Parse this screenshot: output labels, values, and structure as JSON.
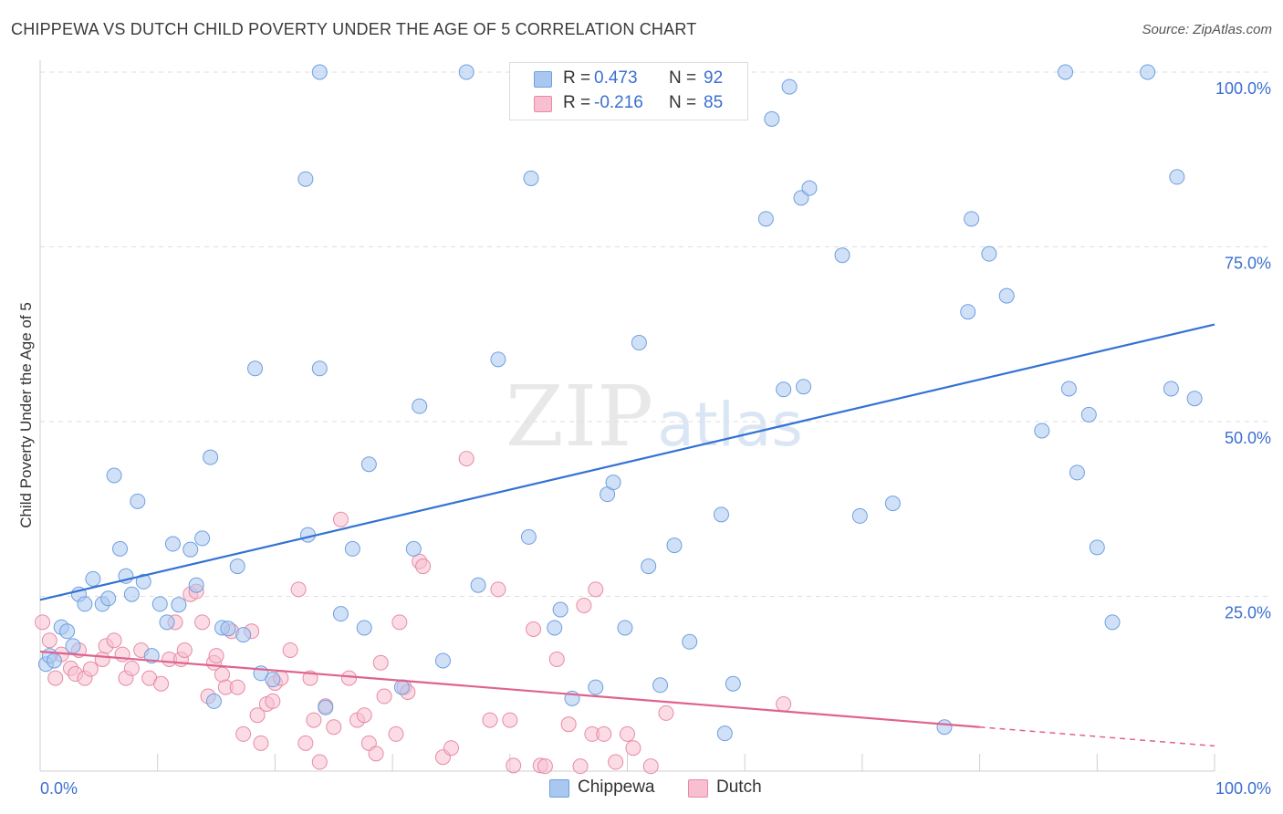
{
  "header": {
    "title": "CHIPPEWA VS DUTCH CHILD POVERTY UNDER THE AGE OF 5 CORRELATION CHART",
    "source": "Source: ZipAtlas.com"
  },
  "watermark": {
    "zip": "ZIP",
    "atlas": "atlas"
  },
  "legend": {
    "rows": [
      {
        "r_label": "R =",
        "r_value": "0.473",
        "n_label": "N =",
        "n_value": "92"
      },
      {
        "r_label": "R =",
        "r_value": "-0.216",
        "n_label": "N =",
        "n_value": "85"
      }
    ],
    "bottom": [
      "Chippewa",
      "Dutch"
    ]
  },
  "colors": {
    "chippewa_fill": "#a9c8f0",
    "chippewa_stroke": "#6e9fe0",
    "chippewa_line": "#3372d4",
    "dutch_fill": "#f7bfd0",
    "dutch_stroke": "#e88aa8",
    "dutch_line": "#e0628d",
    "axis_text": "#3b6fd0",
    "grid": "#dedede"
  },
  "chart_data": {
    "type": "scatter",
    "title": "CHIPPEWA VS DUTCH CHILD POVERTY UNDER THE AGE OF 5 CORRELATION CHART",
    "xlabel": "",
    "ylabel": "Child Poverty Under the Age of 5",
    "xlim": [
      0,
      100
    ],
    "ylim": [
      0,
      100
    ],
    "x_tick_labels": [
      "0.0%",
      "100.0%"
    ],
    "y_tick_labels": [
      "25.0%",
      "50.0%",
      "75.0%",
      "100.0%"
    ],
    "y_ticks": [
      25,
      50,
      75,
      100
    ],
    "grid": true,
    "legend_position": "top-center",
    "series": [
      {
        "name": "Chippewa",
        "r": 0.473,
        "n": 92,
        "trend": {
          "x": [
            0,
            100
          ],
          "y": [
            24.5,
            63.9
          ],
          "dashed_from": null
        },
        "points": [
          [
            0.5,
            15.3
          ],
          [
            0.8,
            16.5
          ],
          [
            1.2,
            15.8
          ],
          [
            1.8,
            20.6
          ],
          [
            2.3,
            20.0
          ],
          [
            2.8,
            17.9
          ],
          [
            3.3,
            25.3
          ],
          [
            3.8,
            23.9
          ],
          [
            4.5,
            27.5
          ],
          [
            5.3,
            23.9
          ],
          [
            5.8,
            24.7
          ],
          [
            6.3,
            42.3
          ],
          [
            6.8,
            31.8
          ],
          [
            7.3,
            27.9
          ],
          [
            7.8,
            25.3
          ],
          [
            8.3,
            38.6
          ],
          [
            8.8,
            27.1
          ],
          [
            9.5,
            16.5
          ],
          [
            10.2,
            23.9
          ],
          [
            10.8,
            21.3
          ],
          [
            11.3,
            32.5
          ],
          [
            11.8,
            23.8
          ],
          [
            12.8,
            31.7
          ],
          [
            13.3,
            26.6
          ],
          [
            13.8,
            33.3
          ],
          [
            14.5,
            44.9
          ],
          [
            14.8,
            10.0
          ],
          [
            15.5,
            20.5
          ],
          [
            16.0,
            20.4
          ],
          [
            16.8,
            29.3
          ],
          [
            17.3,
            19.5
          ],
          [
            18.3,
            57.6
          ],
          [
            18.8,
            14.0
          ],
          [
            19.8,
            13.1
          ],
          [
            22.6,
            84.7
          ],
          [
            22.8,
            33.8
          ],
          [
            23.8,
            100
          ],
          [
            23.8,
            57.6
          ],
          [
            24.3,
            9.1
          ],
          [
            25.6,
            22.5
          ],
          [
            26.6,
            31.8
          ],
          [
            27.6,
            20.5
          ],
          [
            28.0,
            43.9
          ],
          [
            30.8,
            12.0
          ],
          [
            31.8,
            31.8
          ],
          [
            32.3,
            52.2
          ],
          [
            34.3,
            15.8
          ],
          [
            36.3,
            100
          ],
          [
            37.3,
            26.6
          ],
          [
            39.0,
            58.9
          ],
          [
            41.6,
            33.5
          ],
          [
            41.8,
            84.8
          ],
          [
            43.8,
            20.5
          ],
          [
            44.3,
            23.1
          ],
          [
            45.3,
            10.4
          ],
          [
            47.3,
            12.0
          ],
          [
            48.3,
            39.6
          ],
          [
            48.8,
            41.3
          ],
          [
            49.8,
            20.5
          ],
          [
            51.0,
            61.3
          ],
          [
            51.8,
            29.3
          ],
          [
            52.8,
            12.3
          ],
          [
            54.0,
            32.3
          ],
          [
            55.3,
            18.5
          ],
          [
            58.0,
            36.7
          ],
          [
            58.3,
            5.4
          ],
          [
            59.0,
            12.5
          ],
          [
            61.8,
            79.0
          ],
          [
            62.3,
            93.3
          ],
          [
            63.3,
            54.6
          ],
          [
            63.8,
            97.9
          ],
          [
            64.8,
            82.0
          ],
          [
            65.0,
            55.0
          ],
          [
            65.5,
            83.4
          ],
          [
            68.3,
            73.8
          ],
          [
            69.8,
            36.5
          ],
          [
            72.6,
            38.3
          ],
          [
            77.0,
            6.3
          ],
          [
            79.0,
            65.7
          ],
          [
            79.3,
            79.0
          ],
          [
            80.8,
            74.0
          ],
          [
            82.3,
            68.0
          ],
          [
            85.3,
            48.7
          ],
          [
            87.3,
            100
          ],
          [
            87.6,
            54.7
          ],
          [
            88.3,
            42.7
          ],
          [
            89.3,
            51.0
          ],
          [
            90.0,
            32.0
          ],
          [
            91.3,
            21.3
          ],
          [
            94.3,
            100
          ],
          [
            96.3,
            54.7
          ],
          [
            96.8,
            85.0
          ],
          [
            98.3,
            53.3
          ]
        ]
      },
      {
        "name": "Dutch",
        "r": -0.216,
        "n": 85,
        "trend": {
          "x": [
            0,
            100
          ],
          "y": [
            17.1,
            3.6
          ],
          "dashed_from": 80
        },
        "points": [
          [
            0.2,
            21.3
          ],
          [
            0.8,
            18.7
          ],
          [
            1.3,
            13.3
          ],
          [
            1.8,
            16.7
          ],
          [
            2.6,
            14.7
          ],
          [
            3.0,
            13.9
          ],
          [
            3.3,
            17.3
          ],
          [
            3.8,
            13.3
          ],
          [
            4.3,
            14.6
          ],
          [
            5.3,
            16.0
          ],
          [
            5.6,
            17.9
          ],
          [
            6.3,
            18.7
          ],
          [
            7.0,
            16.7
          ],
          [
            7.3,
            13.3
          ],
          [
            7.8,
            14.7
          ],
          [
            8.6,
            17.3
          ],
          [
            9.3,
            13.3
          ],
          [
            10.3,
            12.5
          ],
          [
            11.0,
            16.0
          ],
          [
            11.5,
            21.3
          ],
          [
            12.0,
            16.0
          ],
          [
            12.3,
            17.3
          ],
          [
            12.8,
            25.3
          ],
          [
            13.3,
            25.7
          ],
          [
            13.8,
            21.3
          ],
          [
            14.3,
            10.7
          ],
          [
            14.8,
            15.5
          ],
          [
            15.0,
            16.5
          ],
          [
            15.5,
            13.8
          ],
          [
            15.8,
            12.0
          ],
          [
            16.3,
            20.0
          ],
          [
            16.8,
            12.0
          ],
          [
            17.3,
            5.3
          ],
          [
            18.0,
            20.0
          ],
          [
            18.5,
            8.0
          ],
          [
            18.8,
            4.0
          ],
          [
            19.3,
            9.6
          ],
          [
            19.8,
            10.0
          ],
          [
            20.0,
            12.6
          ],
          [
            20.5,
            13.3
          ],
          [
            21.3,
            17.3
          ],
          [
            22.0,
            26.0
          ],
          [
            22.6,
            4.0
          ],
          [
            23.0,
            13.3
          ],
          [
            23.3,
            7.3
          ],
          [
            23.8,
            1.3
          ],
          [
            24.3,
            9.3
          ],
          [
            25.0,
            6.3
          ],
          [
            25.6,
            36.0
          ],
          [
            26.3,
            13.3
          ],
          [
            27.0,
            7.3
          ],
          [
            27.6,
            8.0
          ],
          [
            28.0,
            4.0
          ],
          [
            28.6,
            2.5
          ],
          [
            29.0,
            15.5
          ],
          [
            29.3,
            10.7
          ],
          [
            30.3,
            5.3
          ],
          [
            30.6,
            21.3
          ],
          [
            31.0,
            12.0
          ],
          [
            31.3,
            11.3
          ],
          [
            32.3,
            30.0
          ],
          [
            32.6,
            29.3
          ],
          [
            34.3,
            2.0
          ],
          [
            35.0,
            3.3
          ],
          [
            36.3,
            44.7
          ],
          [
            38.3,
            7.3
          ],
          [
            39.0,
            26.0
          ],
          [
            40.0,
            7.3
          ],
          [
            40.3,
            0.8
          ],
          [
            42.0,
            20.3
          ],
          [
            42.6,
            0.8
          ],
          [
            43.0,
            0.7
          ],
          [
            44.0,
            16.0
          ],
          [
            45.0,
            6.7
          ],
          [
            46.0,
            0.7
          ],
          [
            46.3,
            23.7
          ],
          [
            47.0,
            5.3
          ],
          [
            47.3,
            26.0
          ],
          [
            48.0,
            5.3
          ],
          [
            49.0,
            1.3
          ],
          [
            50.0,
            5.3
          ],
          [
            50.5,
            3.3
          ],
          [
            52.0,
            0.7
          ],
          [
            53.3,
            8.3
          ],
          [
            63.3,
            9.6
          ]
        ]
      }
    ]
  }
}
